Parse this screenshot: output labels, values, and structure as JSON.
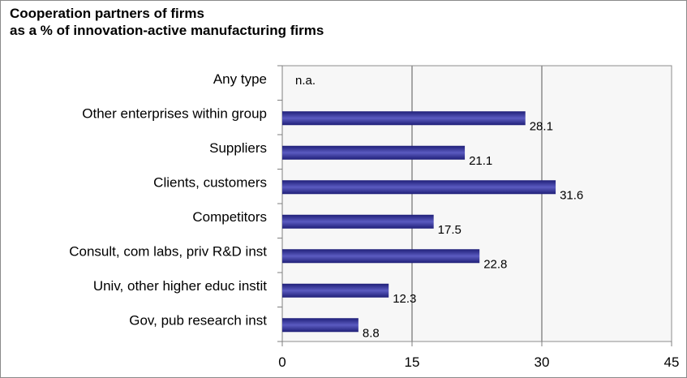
{
  "chart_data": {
    "type": "bar",
    "orientation": "horizontal",
    "title": "Cooperation partners of firms",
    "subtitle": "as a % of innovation-active manufacturing firms",
    "categories": [
      "Any type",
      "Other enterprises within group",
      "Suppliers",
      "Clients, customers",
      "Competitors",
      "Consult, com labs, priv R&D inst",
      "Univ, other higher educ instit",
      "Gov, pub research inst"
    ],
    "values": [
      null,
      28.1,
      21.1,
      31.6,
      17.5,
      22.8,
      12.3,
      8.8
    ],
    "value_labels": [
      "n.a.",
      "28.1",
      "21.1",
      "31.6",
      "17.5",
      "22.8",
      "12.3",
      "8.8"
    ],
    "xlim": [
      0,
      45
    ],
    "xticks": [
      0,
      15,
      30,
      45
    ],
    "xlabel": "",
    "ylabel": "",
    "grid": true,
    "legend": "none",
    "colors": {
      "bar_dark": "#1f1f78",
      "bar_light": "#5b5bc0",
      "plot_bg": "#f7f7f7",
      "grid": "#8c8c8c",
      "frame": "#8a8a8a"
    }
  }
}
